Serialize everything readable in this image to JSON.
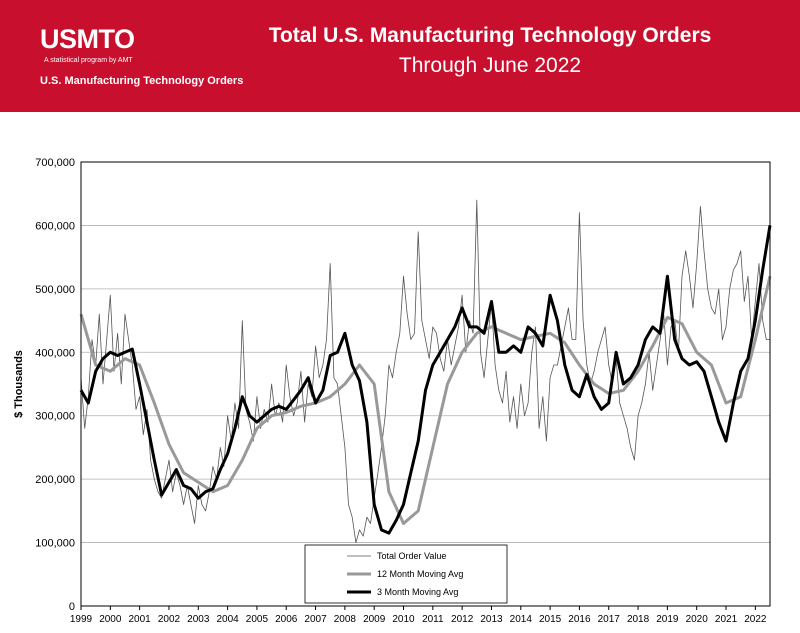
{
  "header": {
    "logo": "USMTO",
    "logo_tagline": "A statistical program by AMT",
    "program": "U.S. Manufacturing Technology Orders",
    "background_color": "#c8102e",
    "text_color": "#ffffff"
  },
  "chart_data": {
    "type": "line",
    "title": "Total U.S. Manufacturing Technology Orders",
    "subtitle": "Through June 2022",
    "ylabel": "$ Thousands",
    "xlabel": "",
    "xlim": [
      1999.0,
      2022.5
    ],
    "ylim": [
      0,
      700000
    ],
    "y_ticks": [
      "0",
      "100,000",
      "200,000",
      "300,000",
      "400,000",
      "500,000",
      "600,000",
      "700,000"
    ],
    "x_ticks": [
      "1999",
      "2000",
      "2001",
      "2002",
      "2003",
      "2004",
      "2005",
      "2006",
      "2007",
      "2008",
      "2009",
      "2010",
      "2011",
      "2012",
      "2013",
      "2014",
      "2015",
      "2016",
      "2017",
      "2018",
      "2019",
      "2020",
      "2021",
      "2022"
    ],
    "grid": "horizontal",
    "legend_position": "bottom-center",
    "series": [
      {
        "name": "3 Month Moving Avg",
        "color": "#000000",
        "x": [
          1999.0,
          1999.25,
          1999.5,
          1999.75,
          2000.0,
          2000.25,
          2000.5,
          2000.75,
          2001.0,
          2001.25,
          2001.5,
          2001.75,
          2002.0,
          2002.25,
          2002.5,
          2002.75,
          2003.0,
          2003.25,
          2003.5,
          2003.75,
          2004.0,
          2004.25,
          2004.5,
          2004.75,
          2005.0,
          2005.25,
          2005.5,
          2005.75,
          2006.0,
          2006.25,
          2006.5,
          2006.75,
          2007.0,
          2007.25,
          2007.5,
          2007.75,
          2008.0,
          2008.25,
          2008.5,
          2008.75,
          2009.0,
          2009.25,
          2009.5,
          2009.75,
          2010.0,
          2010.25,
          2010.5,
          2010.75,
          2011.0,
          2011.25,
          2011.5,
          2011.75,
          2012.0,
          2012.25,
          2012.5,
          2012.75,
          2013.0,
          2013.25,
          2013.5,
          2013.75,
          2014.0,
          2014.25,
          2014.5,
          2014.75,
          2015.0,
          2015.25,
          2015.5,
          2015.75,
          2016.0,
          2016.25,
          2016.5,
          2016.75,
          2017.0,
          2017.25,
          2017.5,
          2017.75,
          2018.0,
          2018.25,
          2018.5,
          2018.75,
          2019.0,
          2019.25,
          2019.5,
          2019.75,
          2020.0,
          2020.25,
          2020.5,
          2020.75,
          2021.0,
          2021.25,
          2021.5,
          2021.75,
          2022.0,
          2022.25,
          2022.5
        ],
        "y": [
          340000,
          320000,
          370000,
          390000,
          400000,
          395000,
          400000,
          405000,
          350000,
          290000,
          230000,
          175000,
          195000,
          215000,
          190000,
          185000,
          170000,
          180000,
          185000,
          215000,
          240000,
          280000,
          330000,
          300000,
          290000,
          300000,
          310000,
          315000,
          310000,
          325000,
          340000,
          360000,
          320000,
          340000,
          395000,
          400000,
          430000,
          380000,
          355000,
          290000,
          160000,
          120000,
          115000,
          135000,
          160000,
          210000,
          260000,
          340000,
          380000,
          400000,
          420000,
          440000,
          470000,
          440000,
          440000,
          430000,
          480000,
          400000,
          400000,
          410000,
          400000,
          440000,
          430000,
          410000,
          490000,
          450000,
          380000,
          340000,
          330000,
          365000,
          330000,
          310000,
          320000,
          400000,
          350000,
          360000,
          380000,
          420000,
          440000,
          430000,
          520000,
          420000,
          390000,
          380000,
          385000,
          370000,
          330000,
          290000,
          260000,
          320000,
          370000,
          390000,
          450000,
          530000,
          600000
        ]
      },
      {
        "name": "12 Month Moving Avg",
        "color": "#999999",
        "x": [
          1999.0,
          1999.5,
          2000.0,
          2000.5,
          2001.0,
          2001.5,
          2002.0,
          2002.5,
          2003.0,
          2003.5,
          2004.0,
          2004.5,
          2005.0,
          2005.5,
          2006.0,
          2006.5,
          2007.0,
          2007.5,
          2008.0,
          2008.5,
          2009.0,
          2009.5,
          2010.0,
          2010.5,
          2011.0,
          2011.5,
          2012.0,
          2012.5,
          2013.0,
          2013.5,
          2014.0,
          2014.5,
          2015.0,
          2015.5,
          2016.0,
          2016.5,
          2017.0,
          2017.5,
          2018.0,
          2018.5,
          2019.0,
          2019.5,
          2020.0,
          2020.5,
          2021.0,
          2021.5,
          2022.0,
          2022.5
        ],
        "y": [
          460000,
          380000,
          370000,
          390000,
          380000,
          320000,
          255000,
          210000,
          195000,
          180000,
          190000,
          230000,
          280000,
          300000,
          305000,
          315000,
          320000,
          330000,
          350000,
          380000,
          350000,
          180000,
          130000,
          150000,
          250000,
          350000,
          400000,
          430000,
          440000,
          430000,
          420000,
          425000,
          430000,
          415000,
          380000,
          350000,
          335000,
          340000,
          370000,
          410000,
          455000,
          445000,
          400000,
          380000,
          320000,
          330000,
          420000,
          520000
        ]
      },
      {
        "name": "Total Order Value",
        "color": "#555555",
        "x": [
          1999.0,
          1999.125,
          1999.25,
          1999.375,
          1999.5,
          1999.625,
          1999.75,
          1999.875,
          2000.0,
          2000.125,
          2000.25,
          2000.375,
          2000.5,
          2000.625,
          2000.75,
          2000.875,
          2001.0,
          2001.125,
          2001.25,
          2001.375,
          2001.5,
          2001.625,
          2001.75,
          2001.875,
          2002.0,
          2002.125,
          2002.25,
          2002.375,
          2002.5,
          2002.625,
          2002.75,
          2002.875,
          2003.0,
          2003.125,
          2003.25,
          2003.375,
          2003.5,
          2003.625,
          2003.75,
          2003.875,
          2004.0,
          2004.125,
          2004.25,
          2004.375,
          2004.5,
          2004.625,
          2004.75,
          2004.875,
          2005.0,
          2005.125,
          2005.25,
          2005.375,
          2005.5,
          2005.625,
          2005.75,
          2005.875,
          2006.0,
          2006.125,
          2006.25,
          2006.375,
          2006.5,
          2006.625,
          2006.75,
          2006.875,
          2007.0,
          2007.125,
          2007.25,
          2007.375,
          2007.5,
          2007.625,
          2007.75,
          2007.875,
          2008.0,
          2008.125,
          2008.25,
          2008.375,
          2008.5,
          2008.625,
          2008.75,
          2008.875,
          2009.0,
          2009.125,
          2009.25,
          2009.375,
          2009.5,
          2009.625,
          2009.75,
          2009.875,
          2010.0,
          2010.125,
          2010.25,
          2010.375,
          2010.5,
          2010.625,
          2010.75,
          2010.875,
          2011.0,
          2011.125,
          2011.25,
          2011.375,
          2011.5,
          2011.625,
          2011.75,
          2011.875,
          2012.0,
          2012.125,
          2012.25,
          2012.375,
          2012.5,
          2012.625,
          2012.75,
          2012.875,
          2013.0,
          2013.125,
          2013.25,
          2013.375,
          2013.5,
          2013.625,
          2013.75,
          2013.875,
          2014.0,
          2014.125,
          2014.25,
          2014.375,
          2014.5,
          2014.625,
          2014.75,
          2014.875,
          2015.0,
          2015.125,
          2015.25,
          2015.375,
          2015.5,
          2015.625,
          2015.75,
          2015.875,
          2016.0,
          2016.125,
          2016.25,
          2016.375,
          2016.5,
          2016.625,
          2016.75,
          2016.875,
          2017.0,
          2017.125,
          2017.25,
          2017.375,
          2017.5,
          2017.625,
          2017.75,
          2017.875,
          2018.0,
          2018.125,
          2018.25,
          2018.375,
          2018.5,
          2018.625,
          2018.75,
          2018.875,
          2019.0,
          2019.125,
          2019.25,
          2019.375,
          2019.5,
          2019.625,
          2019.75,
          2019.875,
          2020.0,
          2020.125,
          2020.25,
          2020.375,
          2020.5,
          2020.625,
          2020.75,
          2020.875,
          2021.0,
          2021.125,
          2021.25,
          2021.375,
          2021.5,
          2021.625,
          2021.75,
          2021.875,
          2022.0,
          2022.125,
          2022.25,
          2022.375,
          2022.5
        ],
        "y": [
          360000,
          280000,
          330000,
          420000,
          380000,
          460000,
          350000,
          420000,
          490000,
          370000,
          430000,
          350000,
          460000,
          420000,
          380000,
          310000,
          330000,
          270000,
          310000,
          230000,
          200000,
          180000,
          170000,
          200000,
          230000,
          180000,
          210000,
          190000,
          160000,
          190000,
          160000,
          130000,
          190000,
          160000,
          150000,
          180000,
          220000,
          200000,
          250000,
          220000,
          300000,
          260000,
          320000,
          280000,
          450000,
          310000,
          290000,
          260000,
          330000,
          280000,
          310000,
          290000,
          350000,
          300000,
          320000,
          290000,
          380000,
          330000,
          300000,
          320000,
          370000,
          290000,
          350000,
          330000,
          410000,
          360000,
          380000,
          420000,
          540000,
          360000,
          350000,
          300000,
          250000,
          160000,
          140000,
          100000,
          120000,
          110000,
          140000,
          130000,
          170000,
          210000,
          250000,
          300000,
          380000,
          360000,
          400000,
          430000,
          520000,
          460000,
          420000,
          430000,
          590000,
          450000,
          420000,
          390000,
          440000,
          430000,
          390000,
          370000,
          420000,
          380000,
          410000,
          440000,
          490000,
          400000,
          450000,
          430000,
          640000,
          400000,
          360000,
          420000,
          480000,
          380000,
          340000,
          320000,
          370000,
          290000,
          330000,
          280000,
          350000,
          300000,
          320000,
          400000,
          440000,
          280000,
          330000,
          260000,
          360000,
          380000,
          380000,
          410000,
          440000,
          470000,
          420000,
          420000,
          620000,
          450000,
          380000,
          350000,
          370000,
          400000,
          420000,
          440000,
          380000,
          350000,
          390000,
          320000,
          300000,
          280000,
          250000,
          230000,
          300000,
          320000,
          350000,
          400000,
          340000,
          380000,
          420000,
          460000,
          380000,
          440000,
          450000,
          400000,
          520000,
          560000,
          520000,
          470000,
          540000,
          630000,
          560000,
          500000,
          470000,
          460000,
          500000,
          420000,
          440000,
          500000,
          530000,
          540000,
          560000,
          480000,
          520000,
          420000,
          480000,
          540000,
          450000,
          420000,
          420000
        ]
      }
    ]
  }
}
